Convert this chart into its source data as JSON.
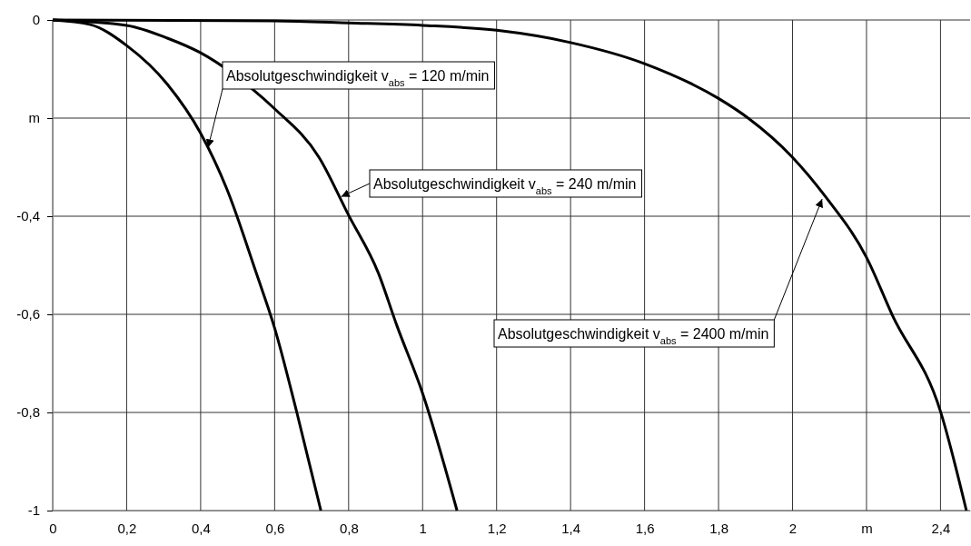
{
  "chart_data": {
    "type": "line",
    "xlim": [
      0,
      2.48
    ],
    "ylim": [
      -1,
      0
    ],
    "xticks": [
      0,
      {
        "value": 0.2,
        "label": "0,2"
      },
      {
        "value": 0.4,
        "label": "0,4"
      },
      {
        "value": 0.6,
        "label": "0,6"
      },
      {
        "value": 0.8,
        "label": "0,8"
      },
      1,
      {
        "value": 1.2,
        "label": "1,2"
      },
      {
        "value": 1.4,
        "label": "1,4"
      },
      {
        "value": 1.6,
        "label": "1,6"
      },
      {
        "value": 1.8,
        "label": "1,8"
      },
      2,
      {
        "value": 2.2,
        "label": "m"
      },
      {
        "value": 2.4,
        "label": "2,4"
      }
    ],
    "yticks": [
      0,
      {
        "value": -0.2,
        "label": "m"
      },
      {
        "value": -0.4,
        "label": "-0,4"
      },
      {
        "value": -0.6,
        "label": "-0,6"
      },
      {
        "value": -0.8,
        "label": "-0,8"
      },
      -1
    ],
    "grid": true,
    "marker": "none",
    "line_style": "solid",
    "series": [
      {
        "color": "#000000",
        "x": [
          0,
          0.1,
          0.2,
          0.31,
          0.4,
          0.47,
          0.55,
          0.6,
          0.66,
          0.725
        ],
        "values": [
          0,
          -0.009,
          -0.052,
          -0.131,
          -0.231,
          -0.343,
          -0.515,
          -0.628,
          -0.8,
          -1
        ]
      },
      {
        "color": "#000000",
        "x": [
          0,
          0.2,
          0.31,
          0.4,
          0.54,
          0.6,
          0.72,
          0.8,
          0.88,
          0.93,
          1.0,
          1.093
        ],
        "values": [
          0,
          -0.011,
          -0.037,
          -0.067,
          -0.141,
          -0.181,
          -0.28,
          -0.398,
          -0.515,
          -0.622,
          -0.761,
          -1
        ]
      },
      {
        "color": "#000000",
        "x": [
          0,
          0.6,
          0.8,
          1.0,
          1.2,
          1.4,
          1.6,
          1.8,
          1.88,
          2.0,
          2.09,
          2.2,
          2.27,
          2.4,
          2.47
        ],
        "values": [
          0,
          -0.002,
          -0.006,
          -0.011,
          -0.021,
          -0.046,
          -0.089,
          -0.16,
          -0.2,
          -0.28,
          -0.361,
          -0.484,
          -0.602,
          -0.798,
          -1
        ]
      }
    ],
    "annotations": [
      {
        "text": "Absolutgeschwindigkeit v$_{abs}$ = 120 m/min",
        "x": 0.42,
        "y": -0.26
      },
      {
        "text": "Absolutgeschwindigkeit v$_{abs}$ = 240 m/min",
        "x": 0.78,
        "y": -0.36
      },
      {
        "text": "Absolutgeschwindigkeit v$_{abs}$ = 2400 m/min",
        "x": 2.08,
        "y": -0.365
      }
    ]
  }
}
